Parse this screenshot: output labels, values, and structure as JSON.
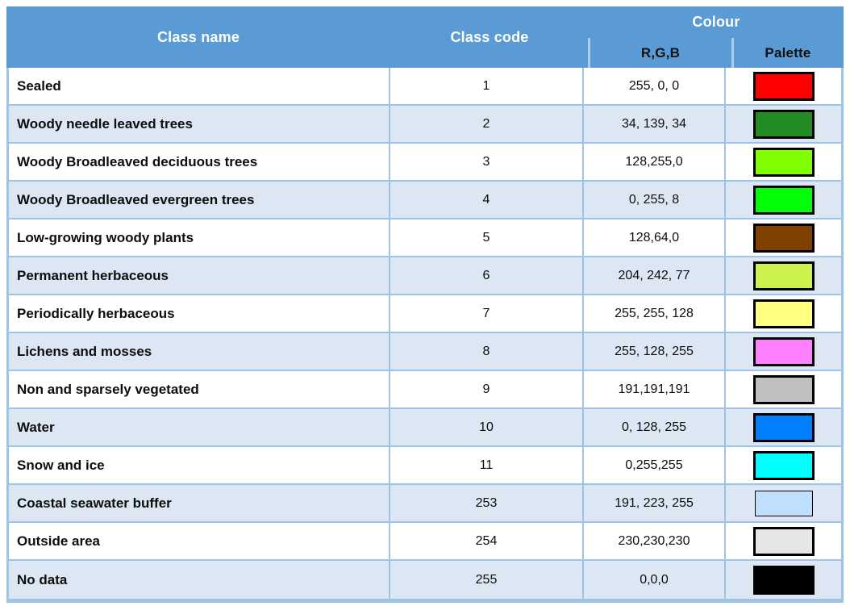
{
  "colors": {
    "header_blue": "#5b9bd5",
    "grid_blue": "#9dc3e6",
    "alt_row_blue": "#dce7f3",
    "header_divider": "#aecbea",
    "swatch_border": "#000000"
  },
  "table": {
    "headers": {
      "class_name": "Class name",
      "class_code": "Class code",
      "colour": "Colour",
      "rgb": "R,G,B",
      "palette": "Palette"
    },
    "rows": [
      {
        "name": "Sealed",
        "code": "1",
        "rgb": "255, 0, 0",
        "hex": "#ff0000",
        "swatch_border": "thick"
      },
      {
        "name": "Woody needle leaved trees",
        "code": "2",
        "rgb": "34, 139, 34",
        "hex": "#228b22",
        "swatch_border": "thick"
      },
      {
        "name": "Woody Broadleaved deciduous trees",
        "code": "3",
        "rgb": "128,255,0",
        "hex": "#80ff00",
        "swatch_border": "thick"
      },
      {
        "name": "Woody Broadleaved evergreen trees",
        "code": "4",
        "rgb": "0, 255, 8",
        "hex": "#00ff08",
        "swatch_border": "thick"
      },
      {
        "name": "Low-growing woody plants",
        "code": "5",
        "rgb": "128,64,0",
        "hex": "#804000",
        "swatch_border": "thick"
      },
      {
        "name": "Permanent herbaceous",
        "code": "6",
        "rgb": "204, 242, 77",
        "hex": "#ccf24d",
        "swatch_border": "thick"
      },
      {
        "name": "Periodically herbaceous",
        "code": "7",
        "rgb": "255, 255, 128",
        "hex": "#ffff80",
        "swatch_border": "thick"
      },
      {
        "name": "Lichens and mosses",
        "code": "8",
        "rgb": "255, 128, 255",
        "hex": "#ff80ff",
        "swatch_border": "thick"
      },
      {
        "name": "Non and sparsely vegetated",
        "code": "9",
        "rgb": "191,191,191",
        "hex": "#bfbfbf",
        "swatch_border": "thick"
      },
      {
        "name": "Water",
        "code": "10",
        "rgb": "0, 128, 255",
        "hex": "#0080ff",
        "swatch_border": "thick"
      },
      {
        "name": "Snow and ice",
        "code": "11",
        "rgb": "0,255,255",
        "hex": "#00ffff",
        "swatch_border": "thick"
      },
      {
        "name": "Coastal seawater buffer",
        "code": "253",
        "rgb": "191, 223, 255",
        "hex": "#bfdfff",
        "swatch_border": "thin"
      },
      {
        "name": "Outside area",
        "code": "254",
        "rgb": "230,230,230",
        "hex": "#e6e6e6",
        "swatch_border": "thick"
      },
      {
        "name": "No data",
        "code": "255",
        "rgb": "0,0,0",
        "hex": "#000000",
        "swatch_border": "thick"
      }
    ]
  }
}
